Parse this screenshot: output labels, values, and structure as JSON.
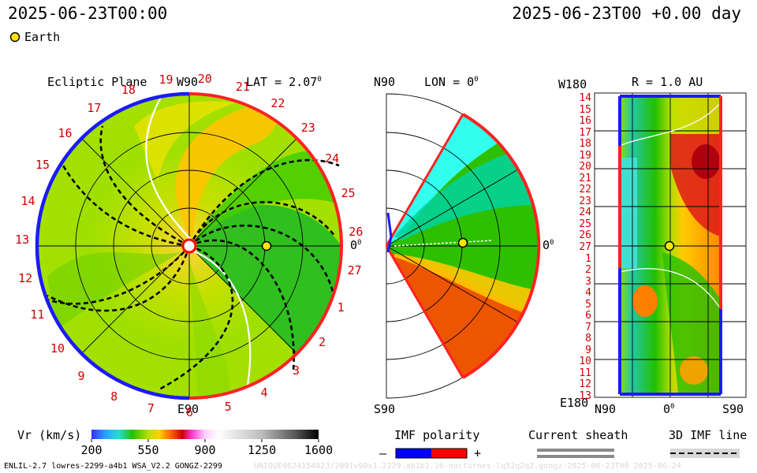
{
  "header": {
    "timestamp_left": "2025-06-23T00:00",
    "timestamp_right": "2025-06-23T00 +0.00 day"
  },
  "legend": {
    "earth_label": "Earth",
    "earth_color": "#ffe600"
  },
  "ecliptic_panel": {
    "title": "Ecliptic Plane",
    "top_label": "W90",
    "bottom_label": "E90",
    "right_label": "0",
    "right_label_sup": "0",
    "lat_label": "LAT = 2.07",
    "lat_sup": "0",
    "carrington_numbers": [
      "19",
      "20",
      "21",
      "22",
      "23",
      "24",
      "25",
      "26",
      "27",
      "1",
      "2",
      "3",
      "4",
      "5",
      "6",
      "7",
      "8",
      "9",
      "10",
      "11",
      "12",
      "13",
      "14",
      "15",
      "16",
      "17",
      "18"
    ]
  },
  "meridional_panel": {
    "top_label": "N90",
    "bottom_label": "S90",
    "lon_label": "LON = 0",
    "lon_sup": "0",
    "right_label": "0",
    "right_label_sup": "0"
  },
  "latlon_panel": {
    "title": "R = 1.0 AU",
    "top_left_label": "W180",
    "bottom_left_label": "E180",
    "x_labels": [
      "N90",
      "0",
      "S90"
    ],
    "x_mid_sup": "0",
    "y_labels": [
      "14",
      "15",
      "16",
      "17",
      "18",
      "19",
      "20",
      "21",
      "22",
      "23",
      "24",
      "25",
      "26",
      "27",
      "1",
      "2",
      "3",
      "4",
      "5",
      "6",
      "7",
      "8",
      "9",
      "10",
      "11",
      "12",
      "13"
    ]
  },
  "colorbar": {
    "label": "Vr (km/s)",
    "ticks": [
      "200",
      "550",
      "900",
      "1250",
      "1600"
    ],
    "range": [
      200,
      1600
    ]
  },
  "imf_polarity": {
    "title": "IMF polarity",
    "minus": "–",
    "plus": "+",
    "neg_color": "#0000ff",
    "pos_color": "#ff0000"
  },
  "current_sheath": {
    "title": "Current sheath"
  },
  "imf_line": {
    "title": "3D IMF line"
  },
  "footer": {
    "left": "ENLIL-2.7 lowres-2299-a4b1 WSA_V2.2 GONGZ-2299",
    "right": "UNIQUE0624154823/2091v90x1.2229.ab1b1.16-nocturnes-lq52q2q2.gongz-2025-06-23T00   2025-06-24"
  }
}
